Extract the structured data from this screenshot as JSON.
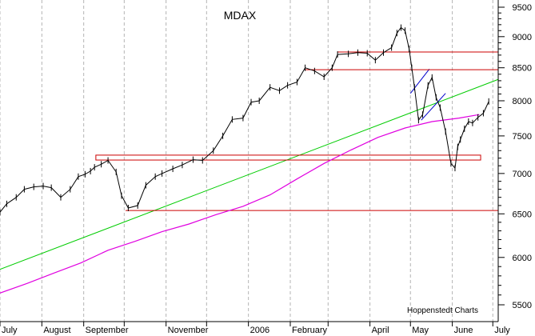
{
  "chart_data": {
    "type": "line",
    "title": "MDAX",
    "credit": "Hoppenstedt Charts",
    "xlabel": "",
    "ylabel": "",
    "y_scale": "log",
    "ylim": [
      5400,
      9600
    ],
    "grid": "vertical-dashed",
    "colors": {
      "price": "#000000",
      "support_resistance": "#cc0000",
      "long_trend": "#00cc00",
      "moving_average": "#e000e0",
      "short_trend": "#0000cc"
    },
    "x_ticks": [
      {
        "label": "July",
        "x": 0
      },
      {
        "label": "August",
        "x": 31
      },
      {
        "label": "September",
        "x": 62
      },
      {
        "label": "",
        "x": 92
      },
      {
        "label": "November",
        "x": 123
      },
      {
        "label": "",
        "x": 153
      },
      {
        "label": "2006",
        "x": 184
      },
      {
        "label": "February",
        "x": 215
      },
      {
        "label": "",
        "x": 243
      },
      {
        "label": "April",
        "x": 274
      },
      {
        "label": "May",
        "x": 304
      },
      {
        "label": "June",
        "x": 335
      },
      {
        "label": "July",
        "x": 365
      }
    ],
    "y_ticks": [
      {
        "label": "5500",
        "value": 5500
      },
      {
        "label": "6000",
        "value": 6000
      },
      {
        "label": "6500",
        "value": 6500
      },
      {
        "label": "7000",
        "value": 7000
      },
      {
        "label": "7500",
        "value": 7500
      },
      {
        "label": "8000",
        "value": 8000
      },
      {
        "label": "8500",
        "value": 8500
      },
      {
        "label": "9000",
        "value": 9000
      },
      {
        "label": "9500",
        "value": 9500
      }
    ],
    "price": {
      "x": [
        0,
        5,
        12,
        18,
        25,
        32,
        38,
        45,
        52,
        58,
        63,
        67,
        70,
        75,
        80,
        86,
        90,
        95,
        102,
        108,
        115,
        120,
        128,
        135,
        143,
        150,
        158,
        165,
        172,
        180,
        186,
        192,
        200,
        207,
        213,
        220,
        226,
        233,
        240,
        246,
        250,
        258,
        265,
        272,
        278,
        284,
        290,
        294,
        297,
        300,
        303,
        305,
        307,
        310,
        313,
        317,
        320,
        323,
        326,
        330,
        334,
        337,
        339,
        341,
        344,
        347,
        350,
        354,
        358,
        362
      ],
      "y": [
        6520,
        6620,
        6700,
        6800,
        6830,
        6840,
        6820,
        6700,
        6800,
        6960,
        6990,
        7030,
        7080,
        7120,
        7170,
        7020,
        6720,
        6570,
        6600,
        6850,
        6960,
        7000,
        7060,
        7110,
        7180,
        7170,
        7300,
        7500,
        7730,
        7750,
        7980,
        8000,
        8200,
        8150,
        8230,
        8280,
        8500,
        8450,
        8360,
        8500,
        8710,
        8720,
        8740,
        8730,
        8620,
        8740,
        8820,
        9060,
        9150,
        9100,
        8800,
        8500,
        8200,
        7720,
        7800,
        8230,
        8350,
        8050,
        7900,
        7560,
        7130,
        7070,
        7350,
        7450,
        7600,
        7700,
        7680,
        7760,
        7820,
        7990
      ]
    },
    "moving_average": {
      "x": [
        0,
        20,
        40,
        60,
        80,
        100,
        120,
        140,
        160,
        180,
        200,
        220,
        240,
        260,
        280,
        300,
        320,
        340,
        355
      ],
      "y": [
        5620,
        5720,
        5830,
        5940,
        6080,
        6180,
        6290,
        6380,
        6490,
        6590,
        6730,
        6930,
        7130,
        7310,
        7480,
        7610,
        7700,
        7750,
        7800
      ]
    },
    "lines": [
      {
        "name": "long-trend",
        "x": [
          0,
          369
        ],
        "y": [
          5870,
          8320
        ]
      },
      {
        "name": "short-trend-upper",
        "x": [
          304,
          318
        ],
        "y": [
          8110,
          8480
        ]
      },
      {
        "name": "short-trend-lower",
        "x": [
          312,
          330
        ],
        "y": [
          7720,
          8110
        ]
      },
      {
        "name": "resistance-8750",
        "x": [
          250,
          369
        ],
        "y": [
          8750,
          8750
        ]
      },
      {
        "name": "resistance-8470",
        "x": [
          226,
          369
        ],
        "y": [
          8470,
          8470
        ]
      },
      {
        "name": "support-6540",
        "x": [
          93,
          369
        ],
        "y": [
          6540,
          6540
        ]
      }
    ],
    "support_box": {
      "x": [
        71,
        356
      ],
      "y": [
        7175,
        7240
      ]
    }
  }
}
